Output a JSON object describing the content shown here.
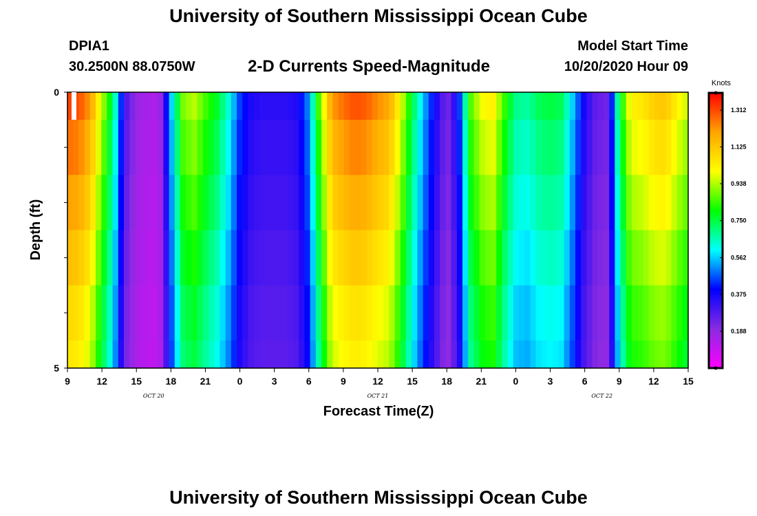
{
  "header": {
    "title": "University of Southern Mississippi Ocean Cube",
    "station_id": "DPIA1",
    "coordinates": "30.2500N 88.0750W",
    "plot_title": "2-D Currents Speed-Magnitude",
    "model_start_label": "Model Start Time",
    "model_start_value": "10/20/2020 Hour 09"
  },
  "footer": {
    "title": "University of Southern Mississippi Ocean Cube"
  },
  "chart_data": {
    "type": "heatmap",
    "title": "2-D Currents Speed-Magnitude",
    "xlabel": "Forecast Time(Z)",
    "ylabel": "Depth (ft)",
    "x_unit": "hours since model start (10/20/2020 09Z)",
    "x_range": [
      0,
      54
    ],
    "y_range": [
      0,
      5
    ],
    "y_ticks": [
      {
        "value": 0,
        "label": "0"
      },
      {
        "value": 5,
        "label": "5"
      }
    ],
    "x_ticks": [
      {
        "hour": 0,
        "label": "9"
      },
      {
        "hour": 3,
        "label": "12"
      },
      {
        "hour": 6,
        "label": "15"
      },
      {
        "hour": 9,
        "label": "18"
      },
      {
        "hour": 12,
        "label": "21"
      },
      {
        "hour": 15,
        "label": "0"
      },
      {
        "hour": 18,
        "label": "3"
      },
      {
        "hour": 21,
        "label": "6"
      },
      {
        "hour": 24,
        "label": "9"
      },
      {
        "hour": 27,
        "label": "12"
      },
      {
        "hour": 30,
        "label": "15"
      },
      {
        "hour": 33,
        "label": "18"
      },
      {
        "hour": 36,
        "label": "21"
      },
      {
        "hour": 39,
        "label": "0"
      },
      {
        "hour": 42,
        "label": "3"
      },
      {
        "hour": 45,
        "label": "6"
      },
      {
        "hour": 48,
        "label": "9"
      },
      {
        "hour": 51,
        "label": "12"
      },
      {
        "hour": 54,
        "label": "15"
      }
    ],
    "date_labels": [
      {
        "hour": 7.5,
        "label": "OCT 20"
      },
      {
        "hour": 27,
        "label": "OCT 21"
      },
      {
        "hour": 46.5,
        "label": "OCT 22"
      }
    ],
    "depth_layers": [
      0.25,
      1.25,
      2.25,
      3.25,
      4.25,
      4.75
    ],
    "speed_by_time": [
      [
        0,
        1.34
      ],
      [
        1,
        1.32
      ],
      [
        2,
        1.22
      ],
      [
        3,
        0.96
      ],
      [
        4,
        0.72
      ],
      [
        5,
        0.3
      ],
      [
        6,
        0.18
      ],
      [
        7,
        0.15
      ],
      [
        8,
        0.14
      ],
      [
        9,
        0.55
      ],
      [
        10,
        0.9
      ],
      [
        11,
        0.96
      ],
      [
        12,
        0.86
      ],
      [
        13,
        0.78
      ],
      [
        14,
        0.64
      ],
      [
        15,
        0.45
      ],
      [
        16,
        0.36
      ],
      [
        17,
        0.34
      ],
      [
        18,
        0.34
      ],
      [
        19,
        0.34
      ],
      [
        20,
        0.36
      ],
      [
        21,
        0.52
      ],
      [
        22,
        0.92
      ],
      [
        23,
        1.22
      ],
      [
        24,
        1.28
      ],
      [
        25,
        1.32
      ],
      [
        26,
        1.3
      ],
      [
        27,
        1.24
      ],
      [
        28,
        1.2
      ],
      [
        29,
        1.0
      ],
      [
        30,
        0.76
      ],
      [
        31,
        0.55
      ],
      [
        32,
        0.38
      ],
      [
        33,
        0.22
      ],
      [
        34,
        0.4
      ],
      [
        35,
        0.86
      ],
      [
        36,
        1.0
      ],
      [
        37,
        1.05
      ],
      [
        38,
        0.85
      ],
      [
        39,
        0.7
      ],
      [
        40,
        0.68
      ],
      [
        41,
        0.74
      ],
      [
        42,
        0.76
      ],
      [
        43,
        0.74
      ],
      [
        44,
        0.56
      ],
      [
        45,
        0.36
      ],
      [
        46,
        0.26
      ],
      [
        47,
        0.24
      ],
      [
        48,
        0.76
      ],
      [
        49,
        1.04
      ],
      [
        50,
        1.06
      ],
      [
        51,
        1.12
      ],
      [
        52,
        1.14
      ],
      [
        53,
        1.04
      ],
      [
        54,
        0.96
      ]
    ],
    "colorbar": {
      "unit": "Knots",
      "range": [
        0.0,
        1.4
      ],
      "ticks": [
        "1.312",
        "1.125",
        "0.938",
        "0.750",
        "0.562",
        "0.375",
        "0.188"
      ],
      "tick_values": [
        1.312,
        1.125,
        0.938,
        0.75,
        0.562,
        0.375,
        0.188
      ],
      "palette": [
        "#ff00ff",
        "#8a2be2",
        "#0000ff",
        "#00ffff",
        "#00ff00",
        "#ffff00",
        "#ffa500",
        "#ff0000"
      ]
    }
  }
}
